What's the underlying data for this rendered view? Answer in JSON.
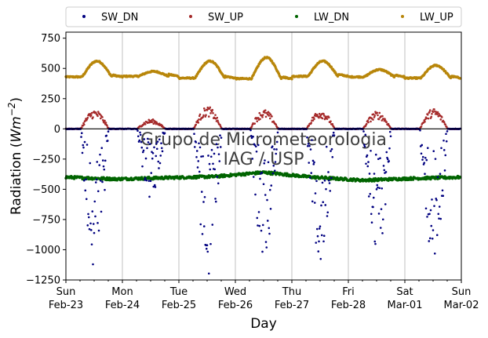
{
  "chart_data": {
    "type": "scatter",
    "title": "",
    "ylabel_text": "Radiation (",
    "ylabel_unit": "Wm",
    "ylabel_exp": "−2",
    "ylabel_close": ")",
    "xlabel": "Day",
    "watermark": [
      "Grupo de Micrometeorologia",
      "IAG / USP"
    ],
    "ylim": [
      -1250,
      800
    ],
    "yticks": [
      750,
      500,
      250,
      0,
      -250,
      -500,
      -750,
      -1000,
      -1250
    ],
    "ytick_labels": [
      "750",
      "500",
      "250",
      "0",
      "−250",
      "−500",
      "−750",
      "−1000",
      "−1250"
    ],
    "xlim_days": [
      0,
      7
    ],
    "xticks": [
      {
        "day": 0,
        "line1": "Sun",
        "line2": "Feb-23"
      },
      {
        "day": 1,
        "line1": "Mon",
        "line2": "Feb-24"
      },
      {
        "day": 2,
        "line1": "Tue",
        "line2": "Feb-25"
      },
      {
        "day": 3,
        "line1": "Wed",
        "line2": "Feb-26"
      },
      {
        "day": 4,
        "line1": "Thu",
        "line2": "Feb-27"
      },
      {
        "day": 5,
        "line1": "Fri",
        "line2": "Feb-28"
      },
      {
        "day": 6,
        "line1": "Sat",
        "line2": "Mar-01"
      },
      {
        "day": 7,
        "line1": "Sun",
        "line2": "Mar-02"
      }
    ],
    "grid": "vertical",
    "zero_line": true,
    "legend_position": "top (outside plot, 4 columns)",
    "series": [
      {
        "name": "SW_DN",
        "color": "#000080",
        "pattern": "daytime negative, near 0 at night, minimum near −1100 around noon (scattered by clouds)",
        "daily_min": [
          -1150,
          -580,
          -1220,
          -1070,
          -1090,
          -1060,
          -1120
        ]
      },
      {
        "name": "SW_UP",
        "color": "#A52A2A",
        "pattern": "daytime positive, about 0 at night",
        "daily_max": [
          160,
          80,
          185,
          160,
          160,
          145,
          170
        ]
      },
      {
        "name": "LW_DN",
        "color": "#006400",
        "pattern": "roughly constant",
        "values_approx": [
          -400,
          -415,
          -405,
          -395,
          -360,
          -400,
          -425,
          -410,
          -400
        ]
      },
      {
        "name": "LW_UP",
        "color": "#B8860B",
        "pattern": "night base around 420-440, afternoon peaks",
        "daily_peak": [
          560,
          475,
          560,
          590,
          560,
          490,
          525
        ],
        "night_base": [
          430,
          435,
          420,
          415,
          435,
          430,
          420
        ]
      }
    ]
  }
}
